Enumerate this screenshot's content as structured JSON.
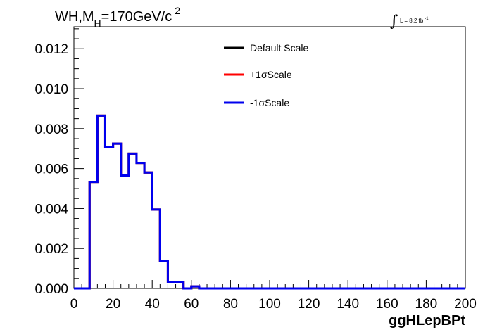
{
  "chart_data": {
    "type": "line",
    "title_main": "WH,M",
    "title_sub": "H",
    "title_value": "=170GeV/c",
    "title_sup": "2",
    "xlabel": "ggHLepBPt",
    "ylabel": "",
    "lumi_symbol": "∫",
    "lumi_text": "L = 8.2 fb",
    "lumi_sup": "-1",
    "xlim": [
      0,
      200
    ],
    "ylim": [
      0,
      0.0131
    ],
    "x_ticks": [
      "0",
      "20",
      "40",
      "60",
      "80",
      "100",
      "120",
      "140",
      "160",
      "180",
      "200"
    ],
    "y_ticks": [
      "0.000",
      "0.002",
      "0.004",
      "0.006",
      "0.008",
      "0.010",
      "0.012"
    ],
    "grid": false,
    "legend_position": "top-center",
    "bin_edges": [
      0,
      4,
      8,
      12,
      16,
      20,
      24,
      28,
      32,
      36,
      40,
      44,
      48,
      52,
      56,
      60,
      64,
      200
    ],
    "series": [
      {
        "name": "Default Scale",
        "color": "#000000",
        "values": [
          0,
          0,
          0.00533,
          0.00865,
          0.00707,
          0.00725,
          0.00565,
          0.00675,
          0.00628,
          0.0058,
          0.00395,
          0.00138,
          0.0003,
          0.0003,
          0,
          0.0001,
          0
        ]
      },
      {
        "name": "+1σScale",
        "color": "#ff0000",
        "values": [
          0,
          0,
          0.00533,
          0.00865,
          0.00707,
          0.00725,
          0.00565,
          0.00675,
          0.00628,
          0.0058,
          0.00395,
          0.00138,
          0.0003,
          0.0003,
          0,
          0.0001,
          0
        ]
      },
      {
        "name": "-1σScale",
        "color": "#0000ee",
        "values": [
          0,
          0,
          0.00533,
          0.00865,
          0.00707,
          0.00725,
          0.00565,
          0.00675,
          0.00628,
          0.0058,
          0.00395,
          0.00138,
          0.0003,
          0.0003,
          0,
          0.0001,
          0
        ]
      }
    ]
  }
}
